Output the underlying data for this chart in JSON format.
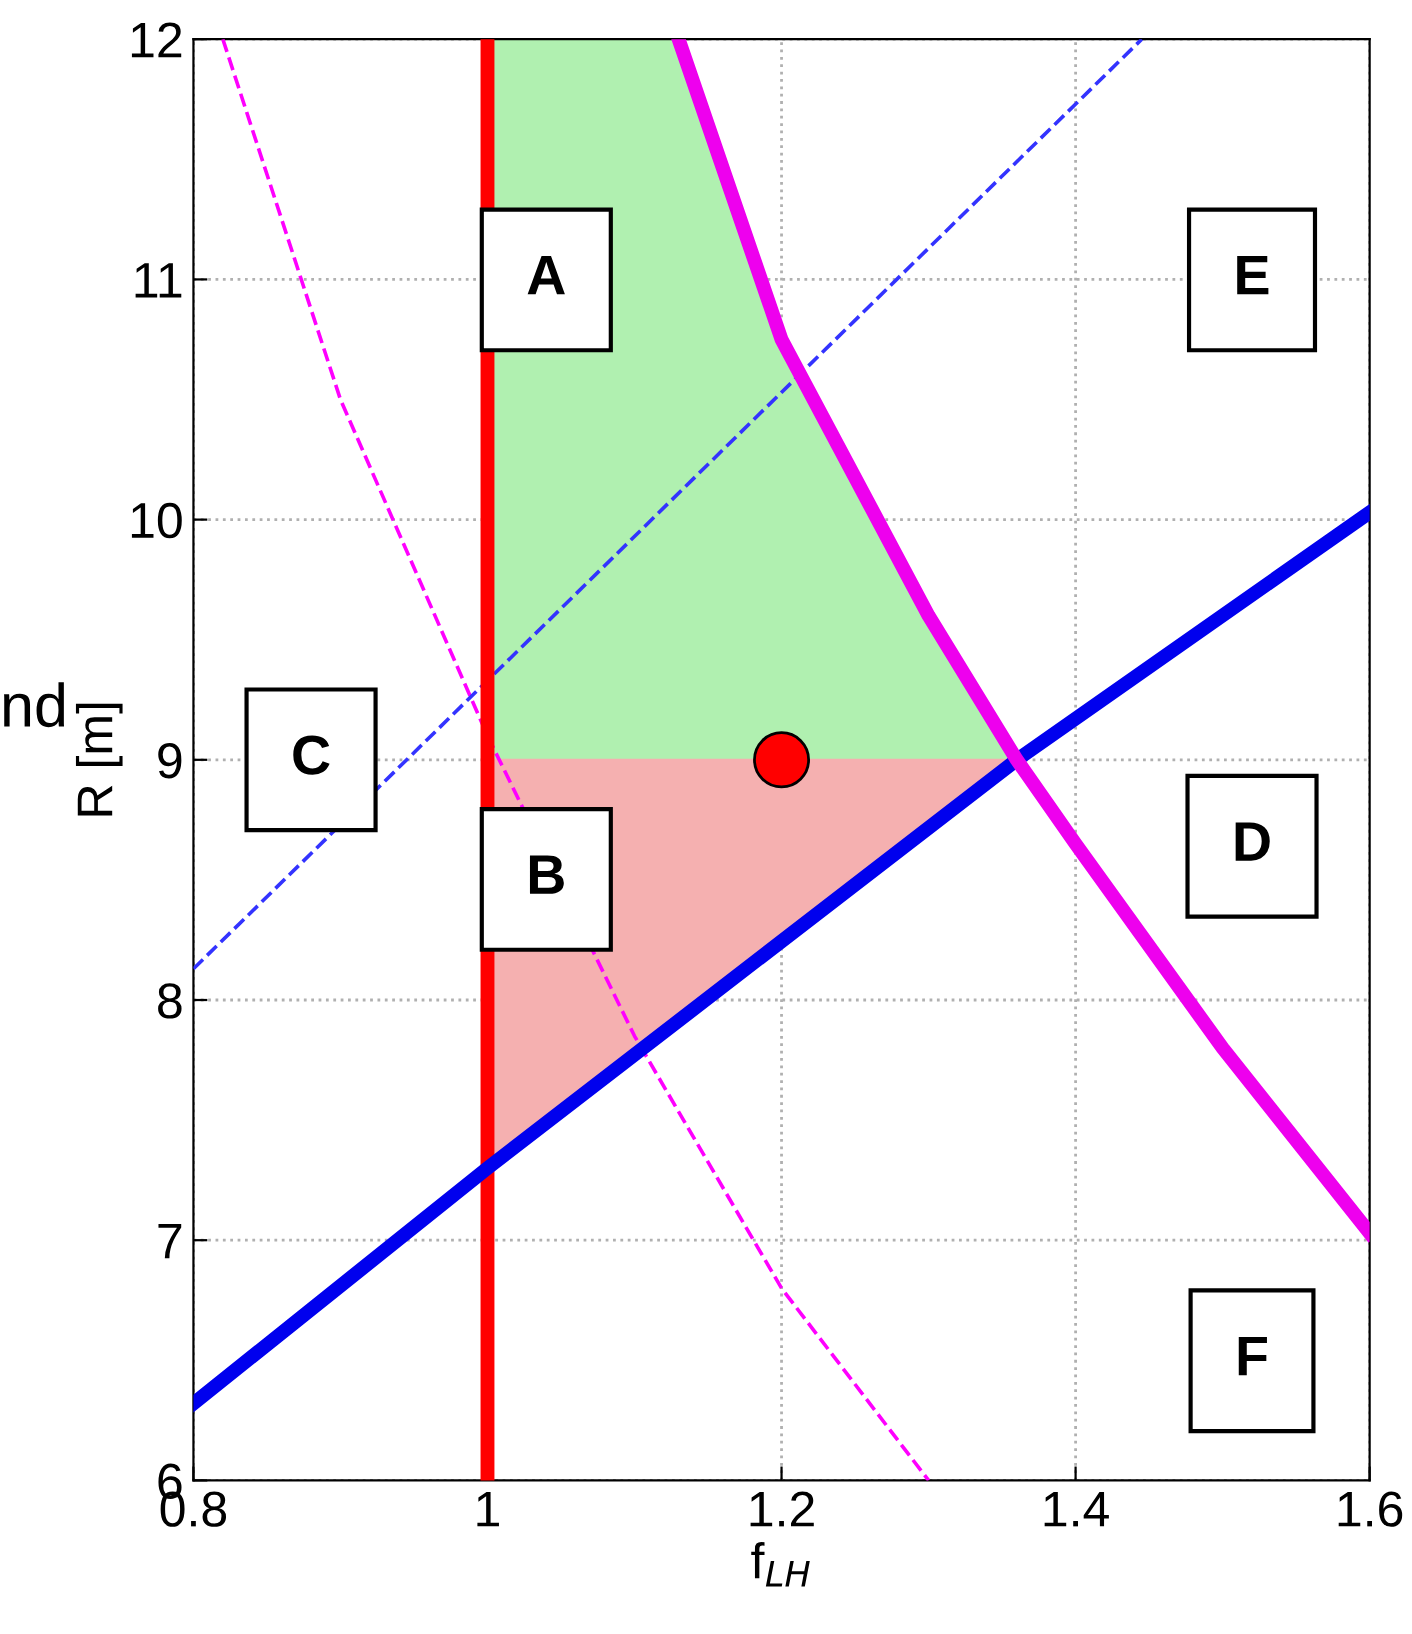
{
  "chart_data": {
    "type": "line",
    "xlabel": "f$_{LH}$",
    "ylabel": "R [m]",
    "xlim": [
      0.8,
      1.6
    ],
    "ylim": [
      6,
      12
    ],
    "xticks": [
      0.8,
      1,
      1.2,
      1.4,
      1.6
    ],
    "yticks": [
      6,
      7,
      8,
      9,
      10,
      11,
      12
    ],
    "grid": true,
    "series": [
      {
        "type": "line",
        "color": "#b0f0b0",
        "x": [
          1.0,
          1.13,
          1.2,
          1.3,
          1.36
        ],
        "values": [
          null,
          null,
          null,
          null,
          null
        ],
        "lower": [
          9,
          9,
          9,
          9,
          9.0
        ],
        "upper": [
          12,
          12,
          10.75,
          9.6,
          9.0
        ]
      },
      {
        "type": "line",
        "color": "#f5b0b0",
        "x": [
          1.0,
          1.36
        ],
        "values": [
          null,
          null
        ],
        "lower": [
          7.3,
          9.0
        ],
        "upper": [
          9,
          9.0
        ]
      },
      {
        "color": "#ff00ff",
        "line_style": "dashed",
        "x": [
          0.82,
          0.9,
          1.0,
          1.1,
          1.2,
          1.3
        ],
        "values": [
          12,
          10.5,
          9.1,
          7.85,
          6.8,
          6.0
        ]
      },
      {
        "color": "#3333ff",
        "line_style": "dashed",
        "x": [
          0.8,
          1.445
        ],
        "values": [
          8.13,
          12
        ]
      },
      {
        "color": "#ff0000",
        "line_style": "solid",
        "x": [
          1,
          1
        ],
        "values": [
          6,
          12
        ]
      },
      {
        "color": "#0000ee",
        "line_style": "solid",
        "x": [
          0.8,
          1.0,
          1.36,
          1.6
        ],
        "values": [
          6.32,
          7.3,
          9.0,
          10.03
        ]
      },
      {
        "color": "#ee00ee",
        "line_style": "solid",
        "x": [
          1.13,
          1.2,
          1.3,
          1.36,
          1.4,
          1.5,
          1.6
        ],
        "values": [
          12,
          10.75,
          9.6,
          9.0,
          8.65,
          7.8,
          7.03
        ]
      },
      {
        "type": "scatter",
        "color": "#ff0000",
        "marker": "circle",
        "x": [
          1.2
        ],
        "values": [
          9.0
        ]
      }
    ],
    "annotations": [
      "A",
      "B",
      "C",
      "D",
      "E",
      "F",
      "nd"
    ]
  }
}
